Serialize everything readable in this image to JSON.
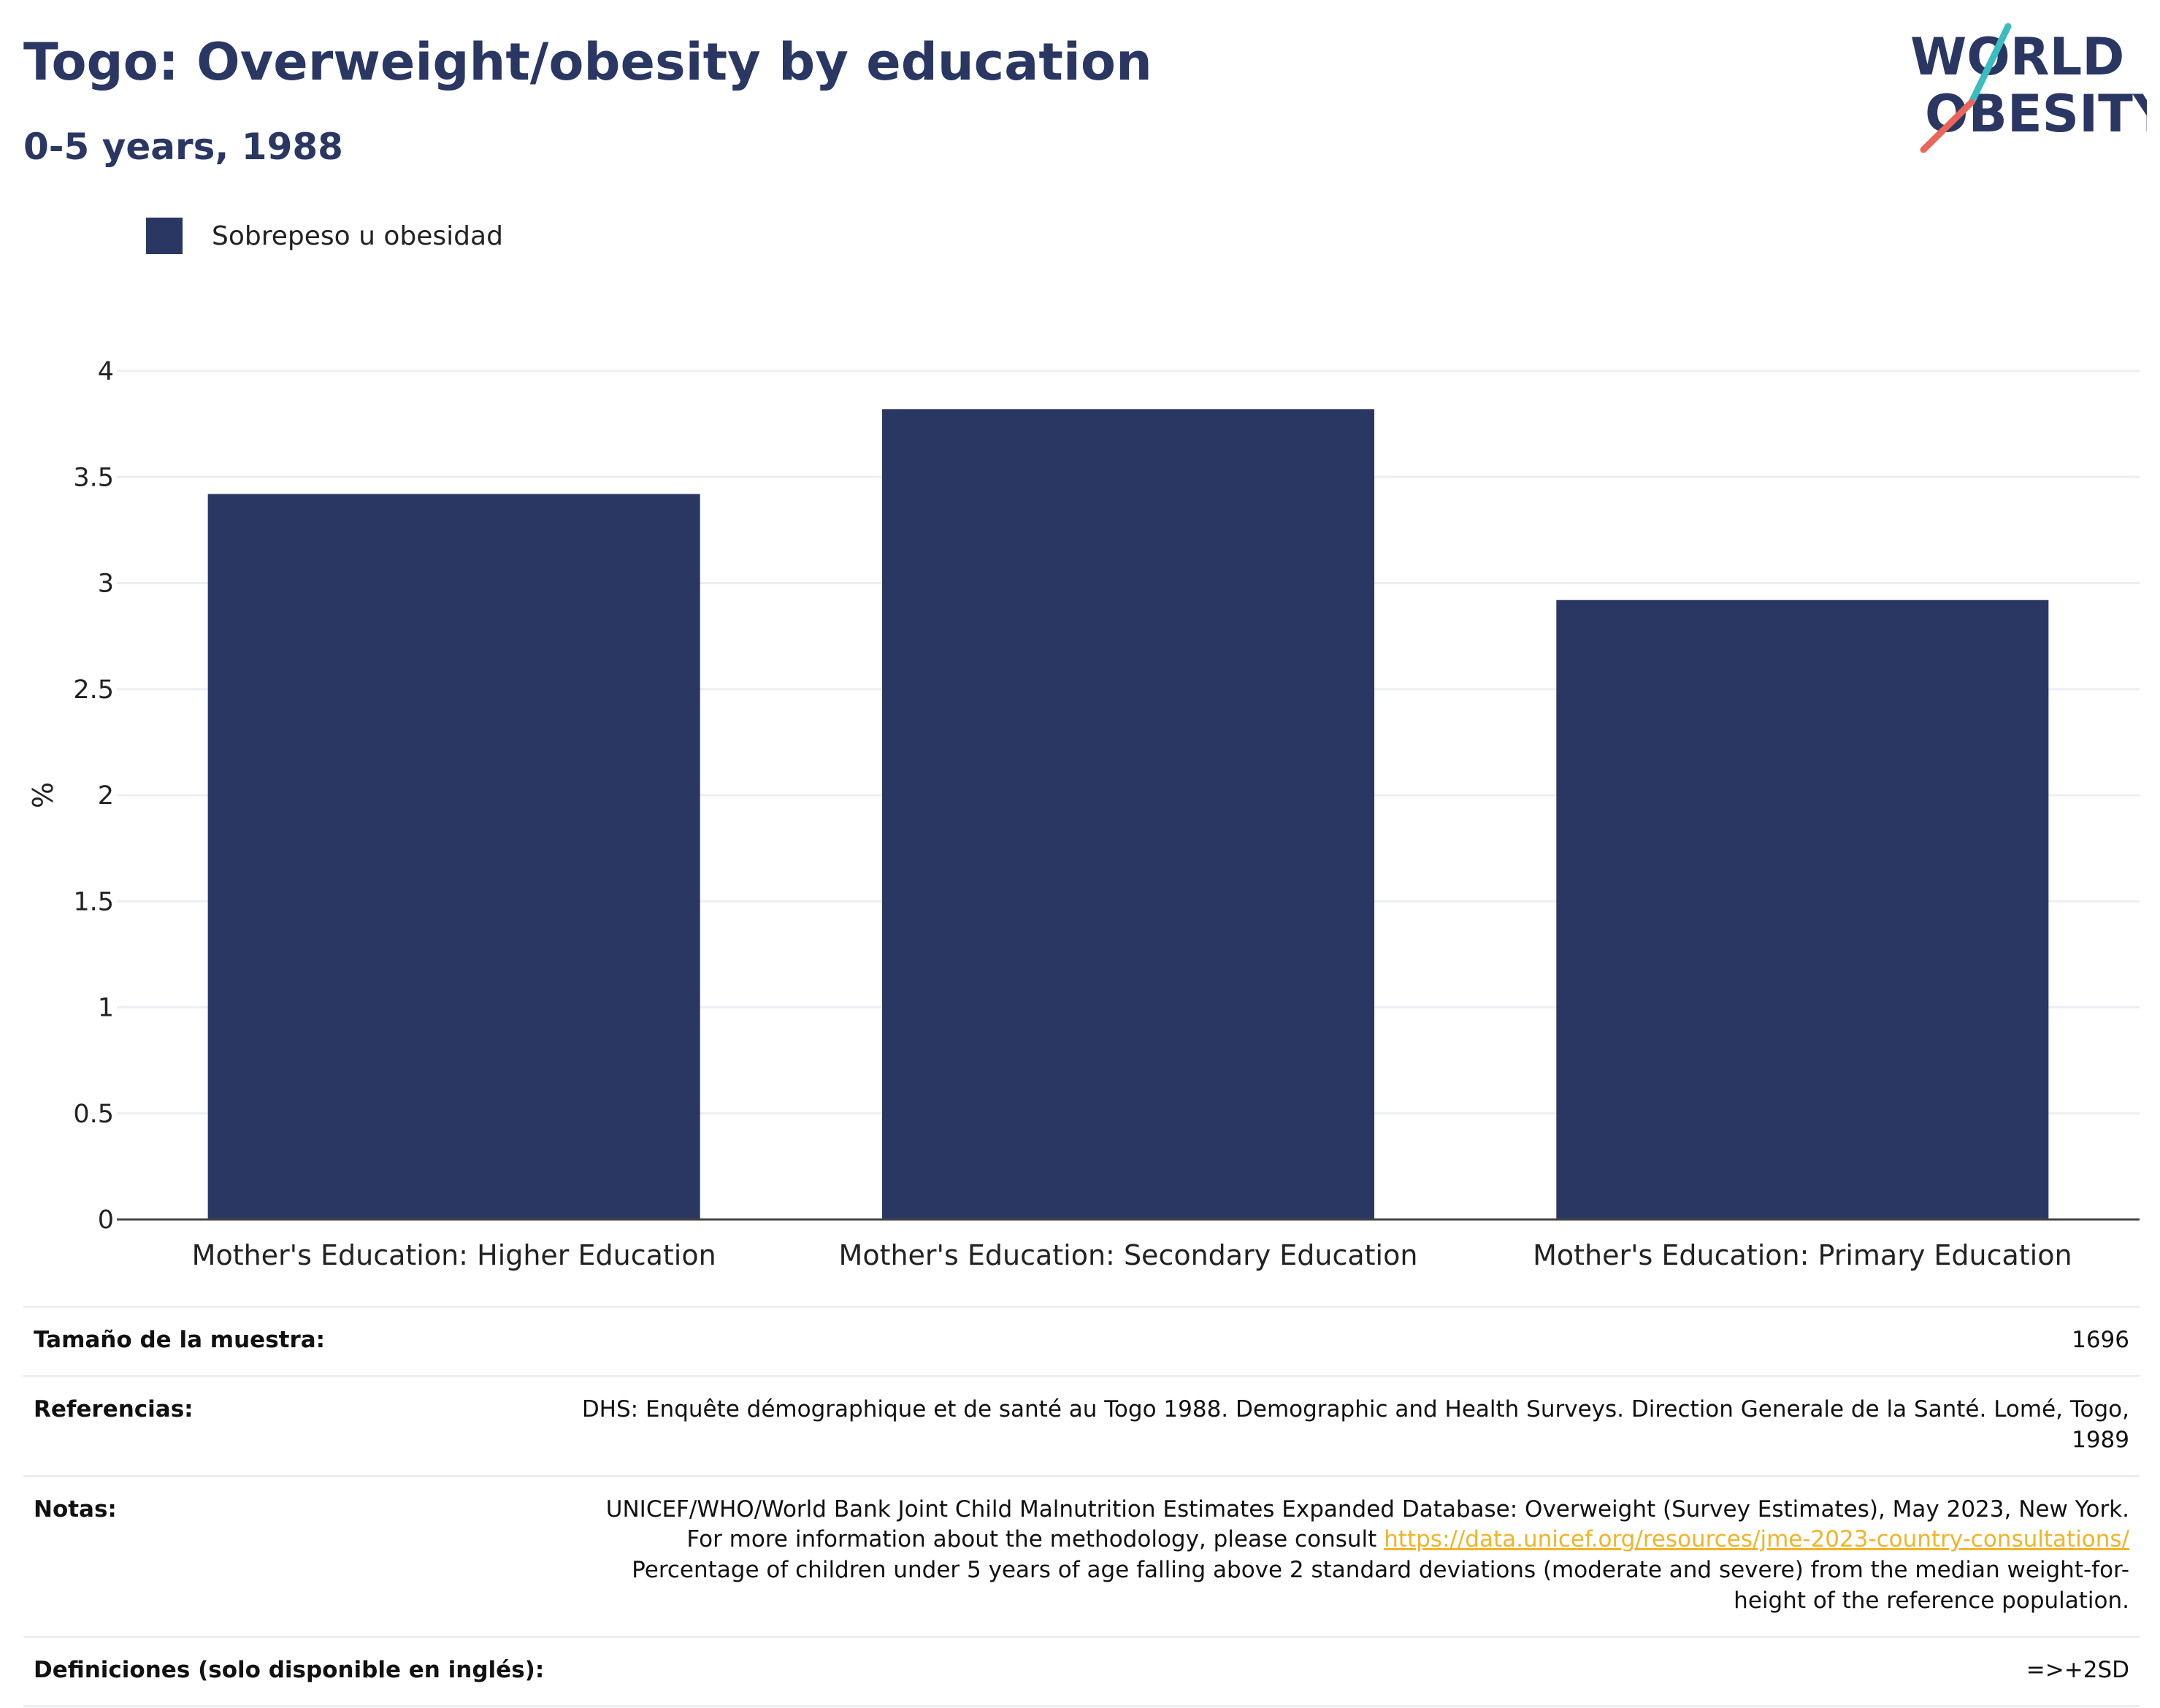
{
  "header": {
    "title": "Togo: Overweight/obesity by education",
    "subtitle": "0-5 years, 1988"
  },
  "logo": {
    "line1": "WORLD",
    "line2": "OBESITY"
  },
  "colors": {
    "bar": "#2a3763",
    "title": "#2a3763",
    "link": "#f0b429",
    "grid": "#eceef4"
  },
  "chart_data": {
    "type": "bar",
    "categories": [
      "Mother's Education: Higher Education",
      "Mother's Education: Secondary Education",
      "Mother's Education: Primary Education"
    ],
    "series": [
      {
        "name": "Sobrepeso u obesidad",
        "values": [
          3.42,
          3.82,
          2.92
        ]
      }
    ],
    "ylabel": "%",
    "ylim": [
      0,
      4
    ],
    "yticks": [
      "0",
      "0.5",
      "1",
      "1.5",
      "2",
      "2.5",
      "3",
      "3.5",
      "4"
    ],
    "grid": true,
    "legend": "top-left"
  },
  "info": {
    "sample_label": "Tamaño de la muestra:",
    "sample_value": "1696",
    "refs_label": "Referencias:",
    "refs_value": "DHS: Enquête démographique et de santé au Togo 1988. Demographic and Health Surveys. Direction Generale de la Santé. Lomé, Togo, 1989",
    "notes_label": "Notas:",
    "notes_text1": "UNICEF/WHO/World Bank Joint Child Malnutrition Estimates Expanded Database: Overweight (Survey Estimates), May 2023, New York. For more information about the methodology, please consult",
    "notes_link": "https://data.unicef.org/resources/jme-2023-country-consultations/",
    "notes_text2": "Percentage of children under 5 years of age falling above 2 standard deviations (moderate and severe) from the median weight-for-height of the reference population.",
    "defs_label": "Definiciones (solo disponible en inglés):",
    "defs_value": "=>+2SD"
  }
}
